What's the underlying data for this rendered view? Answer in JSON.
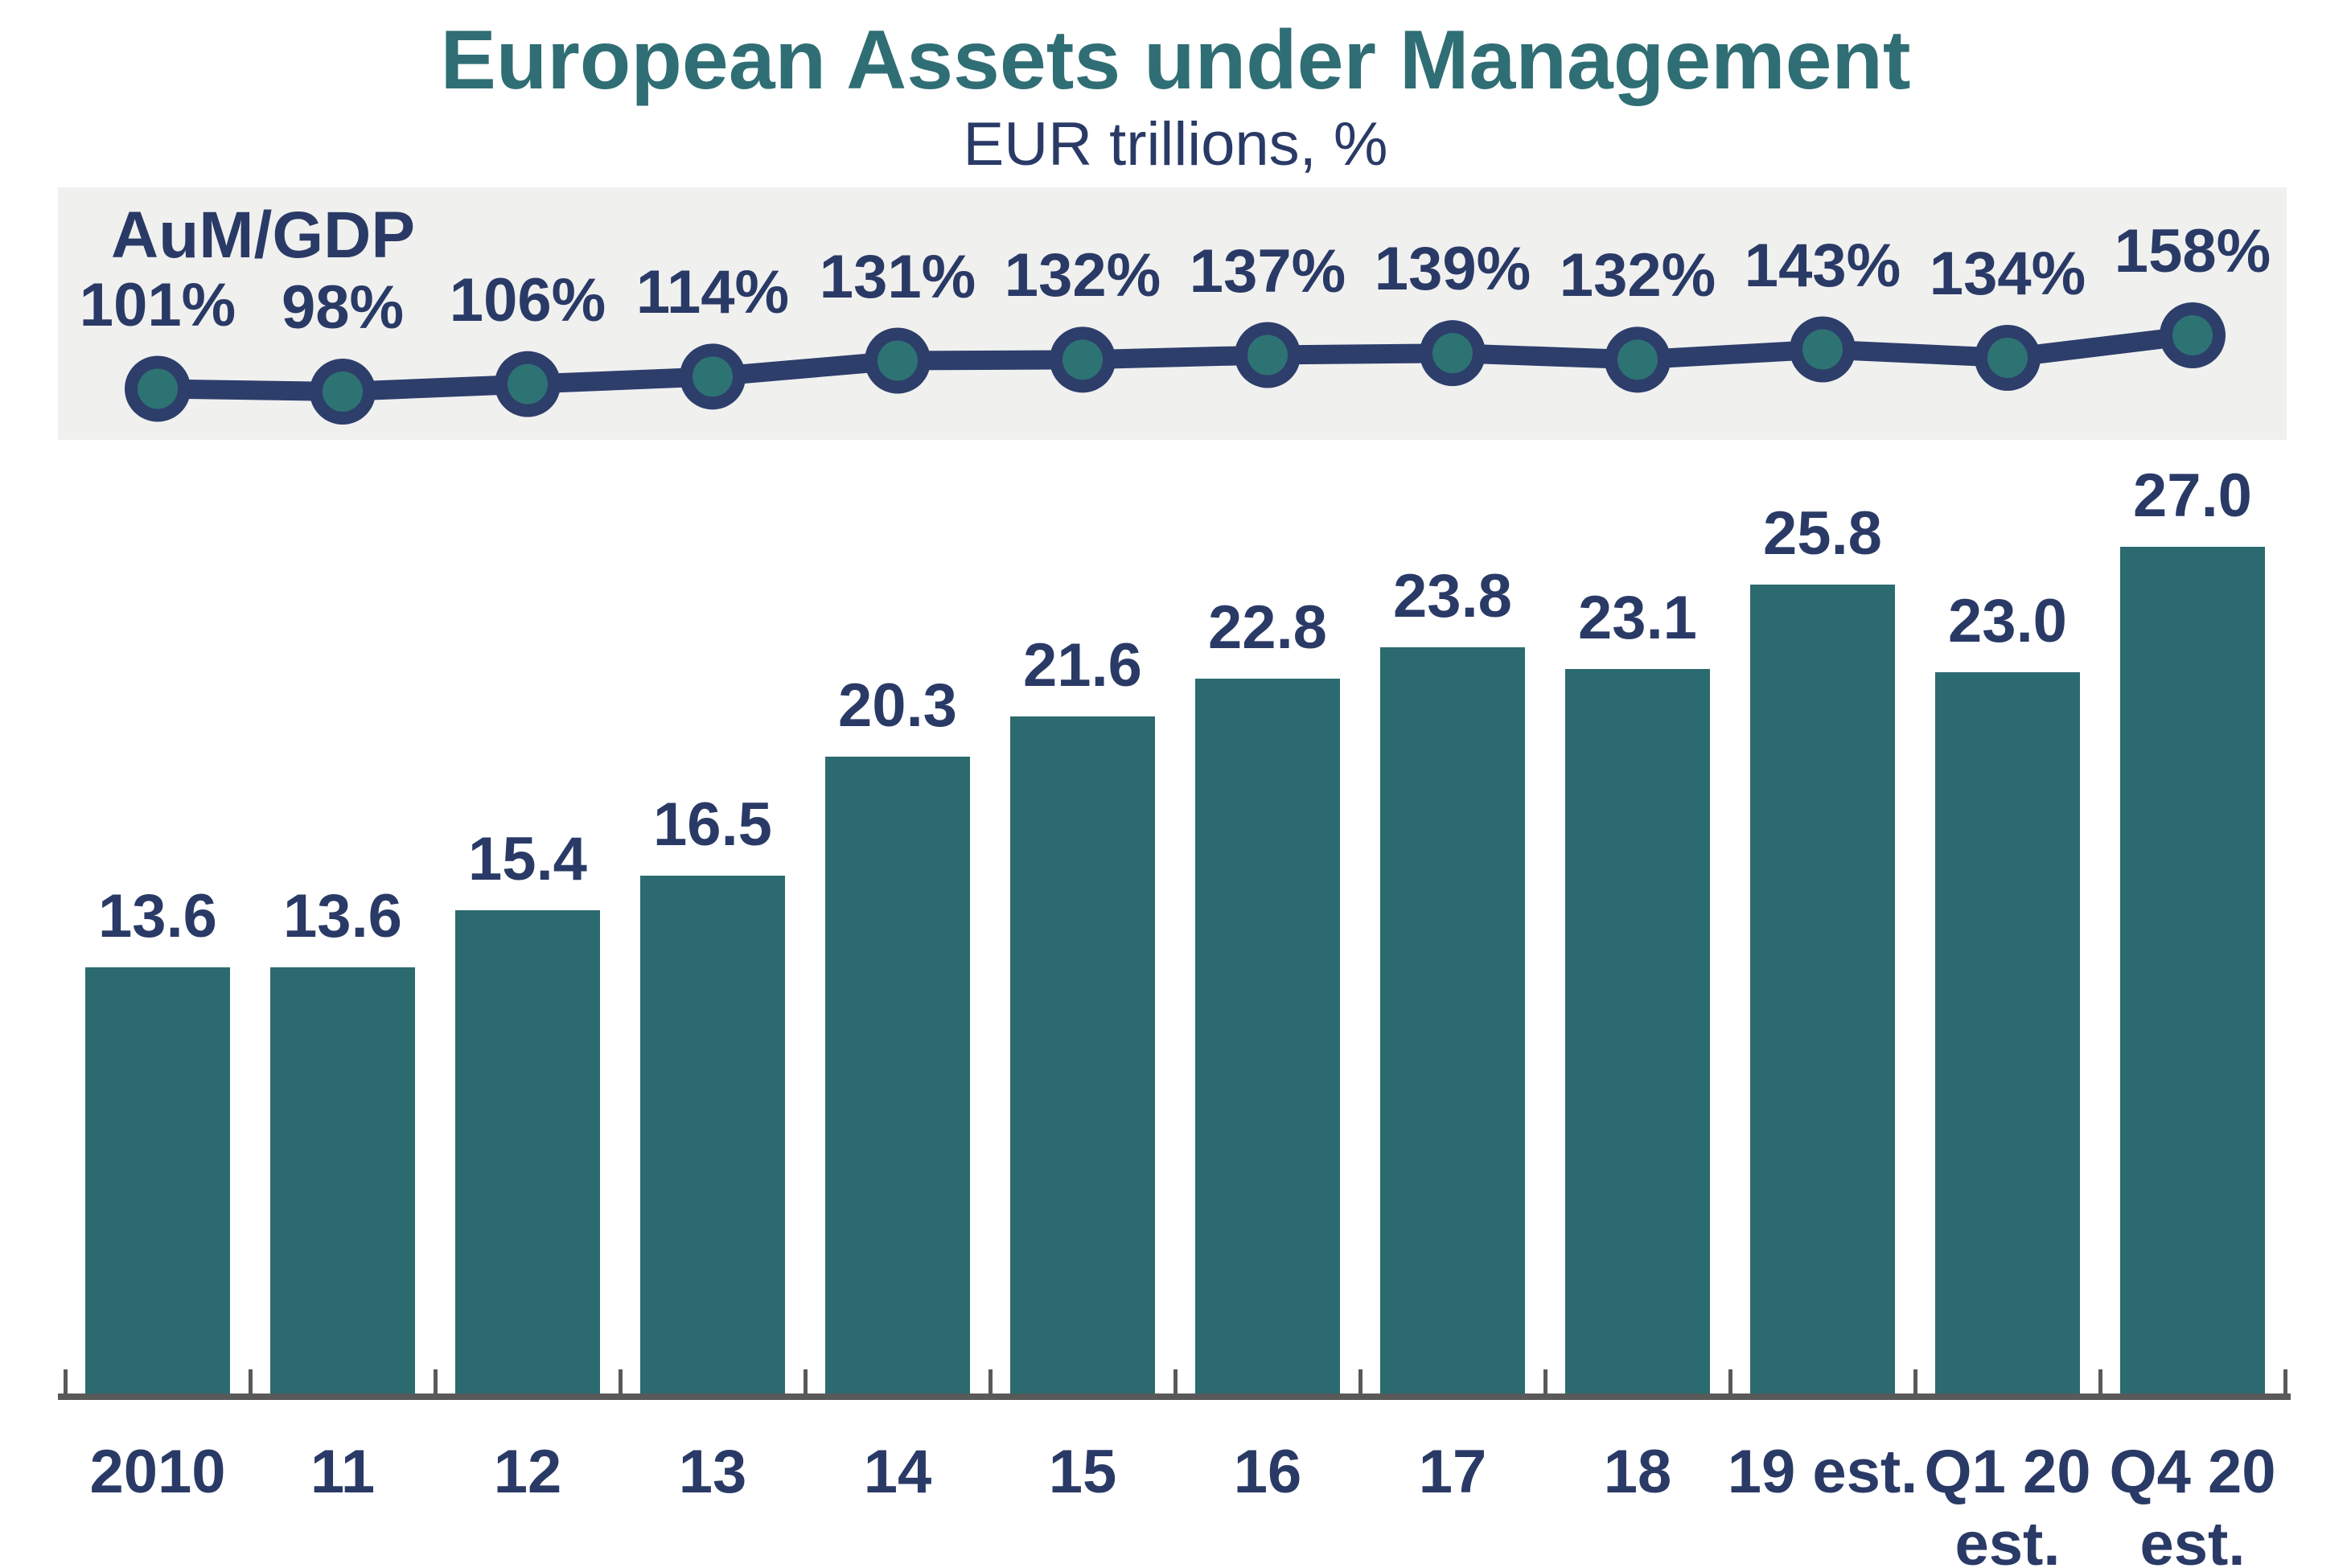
{
  "page": {
    "title": "European Assets under Management",
    "subtitle": "EUR trillions, %"
  },
  "line_legend_label": "AuM/GDP",
  "chart_data": {
    "type": "combo",
    "title": "European Assets under Management",
    "subtitle": "EUR trillions, %",
    "categories": [
      "2010",
      "11",
      "12",
      "13",
      "14",
      "15",
      "16",
      "17",
      "18",
      "19 est.",
      "Q1 20\nest.",
      "Q4 20\nest."
    ],
    "series": [
      {
        "name": "AuM/GDP",
        "type": "line",
        "unit": "%",
        "values": [
          101,
          98,
          106,
          114,
          131,
          132,
          137,
          139,
          132,
          143,
          134,
          158
        ],
        "labels": [
          "101%",
          "98%",
          "106%",
          "114%",
          "131%",
          "132%",
          "137%",
          "139%",
          "132%",
          "143%",
          "134%",
          "158%"
        ],
        "legend_position": "top-left-inside-gray-band",
        "marker": "filled-circle"
      },
      {
        "name": "European Assets under Management",
        "type": "bar",
        "unit": "EUR trillions",
        "values": [
          13.6,
          13.6,
          15.4,
          16.5,
          20.3,
          21.6,
          22.8,
          23.8,
          23.1,
          25.8,
          23.0,
          27.0
        ],
        "labels": [
          "13.6",
          "13.6",
          "15.4",
          "16.5",
          "20.3",
          "21.6",
          "22.8",
          "23.8",
          "23.1",
          "25.8",
          "23.0",
          "27.0"
        ]
      }
    ],
    "grid": false,
    "bar_ylim": [
      0,
      27
    ],
    "line_value_range_pct": [
      98,
      158
    ],
    "x_axis": {
      "ticks_between_slots": true,
      "baseline_visible": true
    }
  },
  "colors": {
    "title_teal": "#2F6E74",
    "bar_teal": "#2B6B70",
    "marker_inner_teal": "#2E7373",
    "line_navy": "#2D3E6B",
    "text_navy": "#2A3A66",
    "band_gray": "#F0F0EF",
    "axis_gray": "#595959",
    "background": "#FFFFFF"
  }
}
